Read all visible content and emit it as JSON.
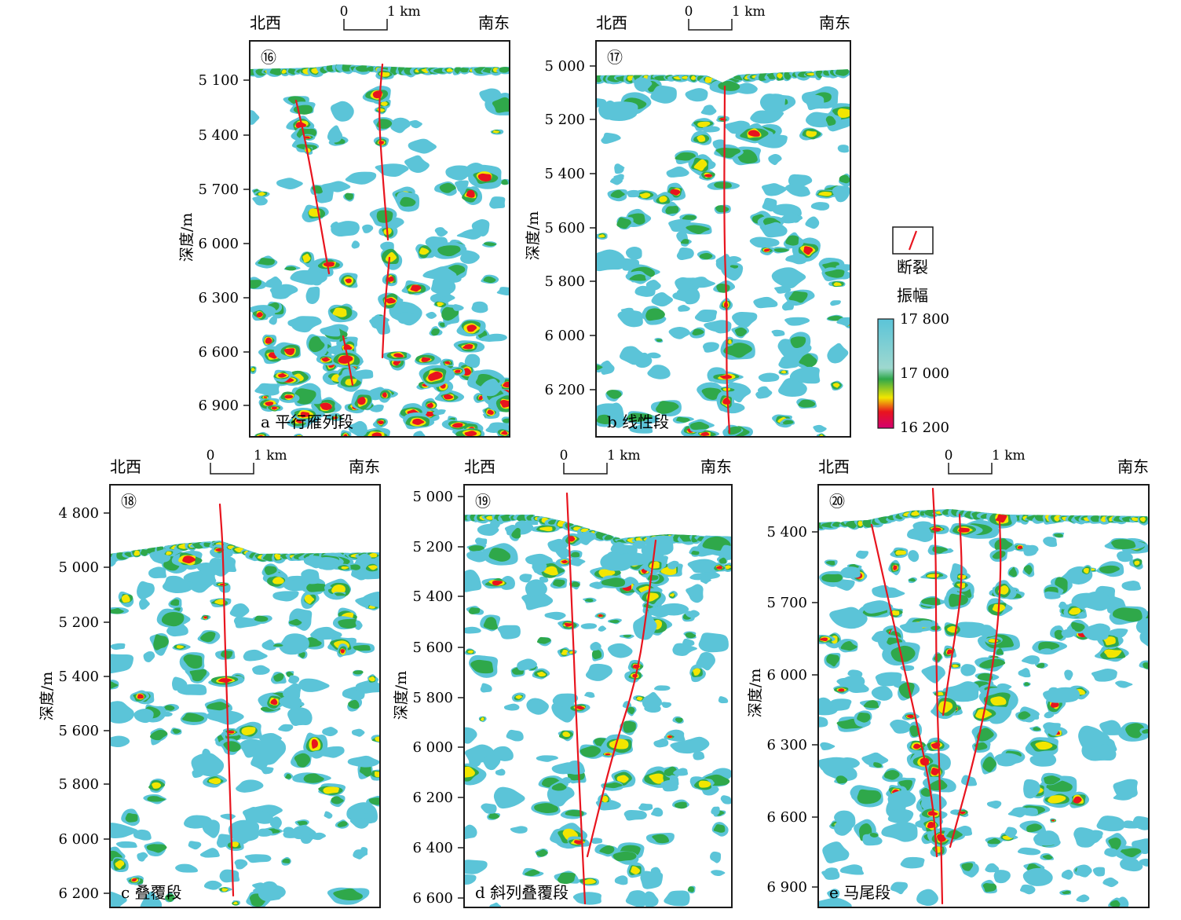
{
  "legend": {
    "fault_label": "断裂",
    "amplitude_label": "振幅",
    "ticks": [
      "17 800",
      "17 000",
      "16 200"
    ],
    "colorbar_colors": [
      "#5bc4d8",
      "#9ed8cf",
      "#2fa84a",
      "#f2e600",
      "#e8141e",
      "#d4006f"
    ],
    "fault_color": "#e8141e"
  },
  "panels": [
    {
      "id": "a",
      "number": "⑯",
      "caption": "a 平行雁列段",
      "left_dir": "北西",
      "right_dir": "南东",
      "scale_0": "0",
      "scale_1": "1 km",
      "depth_label": "深度/m",
      "depth_ticks": [
        "5 100",
        "5 400",
        "5 700",
        "6 000",
        "6 300",
        "6 600",
        "6 900"
      ]
    },
    {
      "id": "b",
      "number": "⑰",
      "caption": "b 线性段",
      "left_dir": "北西",
      "right_dir": "南东",
      "scale_0": "0",
      "scale_1": "1 km",
      "depth_label": "深度/m",
      "depth_ticks": [
        "5 000",
        "5 200",
        "5 400",
        "5 600",
        "5 800",
        "6 000",
        "6 200"
      ]
    },
    {
      "id": "c",
      "number": "⑱",
      "caption": "c 叠覆段",
      "left_dir": "北西",
      "right_dir": "南东",
      "scale_0": "0",
      "scale_1": "1 km",
      "depth_label": "深度/m",
      "depth_ticks": [
        "4 800",
        "5 000",
        "5 200",
        "5 400",
        "5 600",
        "5 800",
        "6 000",
        "6 200"
      ]
    },
    {
      "id": "d",
      "number": "⑲",
      "caption": "d 斜列叠覆段",
      "left_dir": "北西",
      "right_dir": "南东",
      "scale_0": "0",
      "scale_1": "1 km",
      "depth_label": "深度/m",
      "depth_ticks": [
        "5 000",
        "5 200",
        "5 400",
        "5 600",
        "5 800",
        "6 000",
        "6 200",
        "6 400",
        "6 600"
      ]
    },
    {
      "id": "e",
      "number": "⑳",
      "caption": "e 马尾段",
      "left_dir": "北西",
      "right_dir": "南东",
      "scale_0": "0",
      "scale_1": "1 km",
      "depth_label": "深度/m",
      "depth_ticks": [
        "5 400",
        "5 700",
        "6 000",
        "6 300",
        "6 600",
        "6 900"
      ]
    }
  ]
}
